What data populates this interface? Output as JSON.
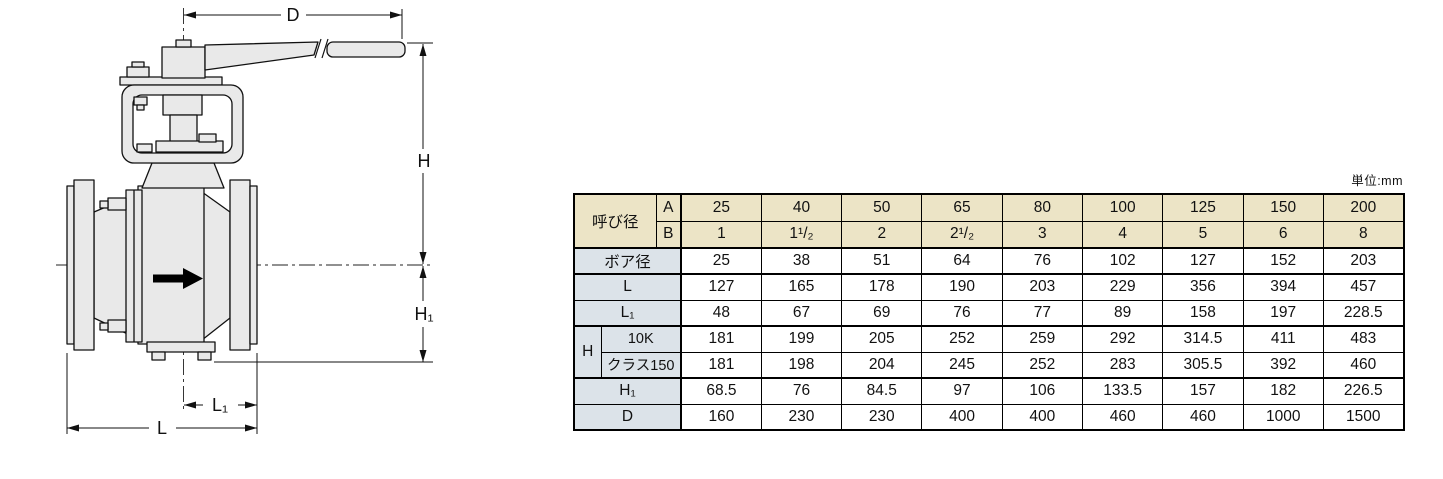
{
  "drawing": {
    "dim_labels": {
      "d": "D",
      "h": "H",
      "h1": "H₁",
      "l1": "L₁",
      "l": "L"
    }
  },
  "table": {
    "unit_label": "単位:mm",
    "header": {
      "corner_label": "呼び径",
      "row_a_label": "A",
      "row_b_label": "B",
      "a_values": [
        "25",
        "40",
        "50",
        "65",
        "80",
        "100",
        "125",
        "150",
        "200"
      ],
      "b_values": [
        "1",
        "1¹/₂",
        "2",
        "2¹/₂",
        "3",
        "4",
        "5",
        "6",
        "8"
      ]
    },
    "rows": [
      {
        "label": "ボア径",
        "values": [
          "25",
          "38",
          "51",
          "64",
          "76",
          "102",
          "127",
          "152",
          "203"
        ]
      },
      {
        "label": "L",
        "values": [
          "127",
          "165",
          "178",
          "190",
          "203",
          "229",
          "356",
          "394",
          "457"
        ]
      },
      {
        "label": "L₁",
        "values": [
          "48",
          "67",
          "69",
          "76",
          "77",
          "89",
          "158",
          "197",
          "228.5"
        ]
      },
      {
        "group": "H",
        "label": "10K",
        "values": [
          "181",
          "199",
          "205",
          "252",
          "259",
          "292",
          "314.5",
          "411",
          "483"
        ]
      },
      {
        "group": "H",
        "label": "クラス150",
        "values": [
          "181",
          "198",
          "204",
          "245",
          "252",
          "283",
          "305.5",
          "392",
          "460"
        ]
      },
      {
        "label": "H₁",
        "values": [
          "68.5",
          "76",
          "84.5",
          "97",
          "106",
          "133.5",
          "157",
          "182",
          "226.5"
        ]
      },
      {
        "label": "D",
        "values": [
          "160",
          "230",
          "230",
          "400",
          "400",
          "460",
          "460",
          "1000",
          "1500"
        ]
      }
    ],
    "colors": {
      "header_bg": "#ece4c6",
      "label_bg": "#dce3e9",
      "border": "#000000"
    }
  }
}
